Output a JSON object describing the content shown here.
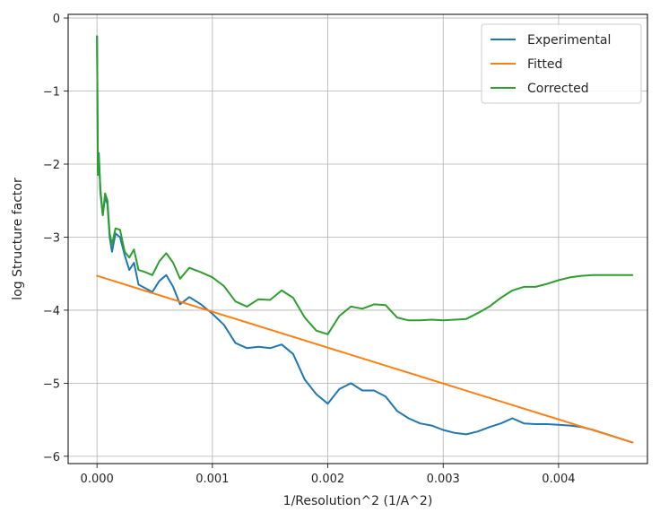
{
  "chart_data": {
    "type": "line",
    "xlabel": "1/Resolution^2 (1/A^2)",
    "ylabel": "log Structure factor",
    "xlim": [
      -0.00025,
      0.00477
    ],
    "ylim": [
      -6.1,
      0.05
    ],
    "xticks": [
      0.0,
      0.001,
      0.002,
      0.003,
      0.004
    ],
    "xtick_labels": [
      "0.000",
      "0.001",
      "0.002",
      "0.003",
      "0.004"
    ],
    "yticks": [
      0,
      -1,
      -2,
      -3,
      -4,
      -5,
      -6
    ],
    "ytick_labels": [
      "0",
      "−1",
      "−2",
      "−3",
      "−4",
      "−5",
      "−6"
    ],
    "grid": true,
    "legend": "top-right",
    "series": [
      {
        "name": "Experimental",
        "color": "#1f77b4",
        "x": [
          0.0,
          8e-06,
          1.6e-05,
          3e-05,
          5e-05,
          7e-05,
          9e-05,
          0.00011,
          0.00013,
          0.00016,
          0.0002,
          0.00024,
          0.00028,
          0.00032,
          0.00036,
          0.00042,
          0.00048,
          0.00054,
          0.0006,
          0.00066,
          0.00072,
          0.0008,
          0.0009,
          0.001,
          0.0011,
          0.0012,
          0.0013,
          0.0014,
          0.0015,
          0.0016,
          0.0017,
          0.0018,
          0.0019,
          0.002,
          0.0021,
          0.0022,
          0.0023,
          0.0024,
          0.0025,
          0.0026,
          0.0027,
          0.0028,
          0.0029,
          0.003,
          0.0031,
          0.0032,
          0.0033,
          0.0034,
          0.0035,
          0.0036,
          0.0037,
          0.0038,
          0.0039,
          0.004,
          0.0041,
          0.0042,
          0.0043,
          0.0044,
          0.0045,
          0.00464
        ],
        "y": [
          -0.25,
          -2.1,
          -1.85,
          -2.4,
          -2.7,
          -2.45,
          -2.55,
          -3.0,
          -3.2,
          -2.95,
          -3.0,
          -3.25,
          -3.45,
          -3.35,
          -3.65,
          -3.7,
          -3.75,
          -3.6,
          -3.52,
          -3.68,
          -3.92,
          -3.82,
          -3.92,
          -4.05,
          -4.2,
          -4.45,
          -4.52,
          -4.5,
          -4.52,
          -4.47,
          -4.6,
          -4.95,
          -5.15,
          -5.28,
          -5.08,
          -5.0,
          -5.1,
          -5.1,
          -5.18,
          -5.38,
          -5.48,
          -5.55,
          -5.58,
          -5.64,
          -5.68,
          -5.7,
          -5.66,
          -5.6,
          -5.55,
          -5.48,
          -5.55,
          -5.56,
          -5.56,
          -5.57,
          -5.58,
          -5.6,
          -5.64,
          -5.69,
          -5.74,
          -5.81
        ]
      },
      {
        "name": "Fitted",
        "color": "#ff7f0e",
        "x": [
          0.0,
          0.00464
        ],
        "y": [
          -3.53,
          -5.81
        ]
      },
      {
        "name": "Corrected",
        "color": "#2ca02c",
        "x": [
          0.0,
          8e-06,
          1.6e-05,
          3e-05,
          5e-05,
          7e-05,
          9e-05,
          0.00011,
          0.00013,
          0.00016,
          0.0002,
          0.00024,
          0.00028,
          0.00032,
          0.00036,
          0.00042,
          0.00048,
          0.00054,
          0.0006,
          0.00066,
          0.00072,
          0.0008,
          0.0009,
          0.001,
          0.0011,
          0.0012,
          0.0013,
          0.0014,
          0.0015,
          0.0016,
          0.0017,
          0.0018,
          0.0019,
          0.002,
          0.0021,
          0.0022,
          0.0023,
          0.0024,
          0.0025,
          0.0026,
          0.0027,
          0.0028,
          0.0029,
          0.003,
          0.0031,
          0.0032,
          0.0033,
          0.0034,
          0.0035,
          0.0036,
          0.0037,
          0.0038,
          0.0039,
          0.004,
          0.0041,
          0.0042,
          0.0043,
          0.0044,
          0.0045,
          0.00464
        ],
        "y": [
          -0.25,
          -2.15,
          -1.9,
          -2.35,
          -2.7,
          -2.4,
          -2.5,
          -2.95,
          -3.1,
          -2.88,
          -2.9,
          -3.2,
          -3.28,
          -3.17,
          -3.45,
          -3.48,
          -3.52,
          -3.33,
          -3.22,
          -3.35,
          -3.57,
          -3.42,
          -3.48,
          -3.55,
          -3.67,
          -3.88,
          -3.95,
          -3.85,
          -3.86,
          -3.73,
          -3.83,
          -4.1,
          -4.28,
          -4.33,
          -4.08,
          -3.95,
          -3.98,
          -3.92,
          -3.93,
          -4.1,
          -4.14,
          -4.14,
          -4.13,
          -4.14,
          -4.13,
          -4.12,
          -4.04,
          -3.95,
          -3.83,
          -3.73,
          -3.68,
          -3.68,
          -3.64,
          -3.59,
          -3.55,
          -3.53,
          -3.52,
          -3.52,
          -3.52,
          -3.52
        ]
      }
    ]
  }
}
